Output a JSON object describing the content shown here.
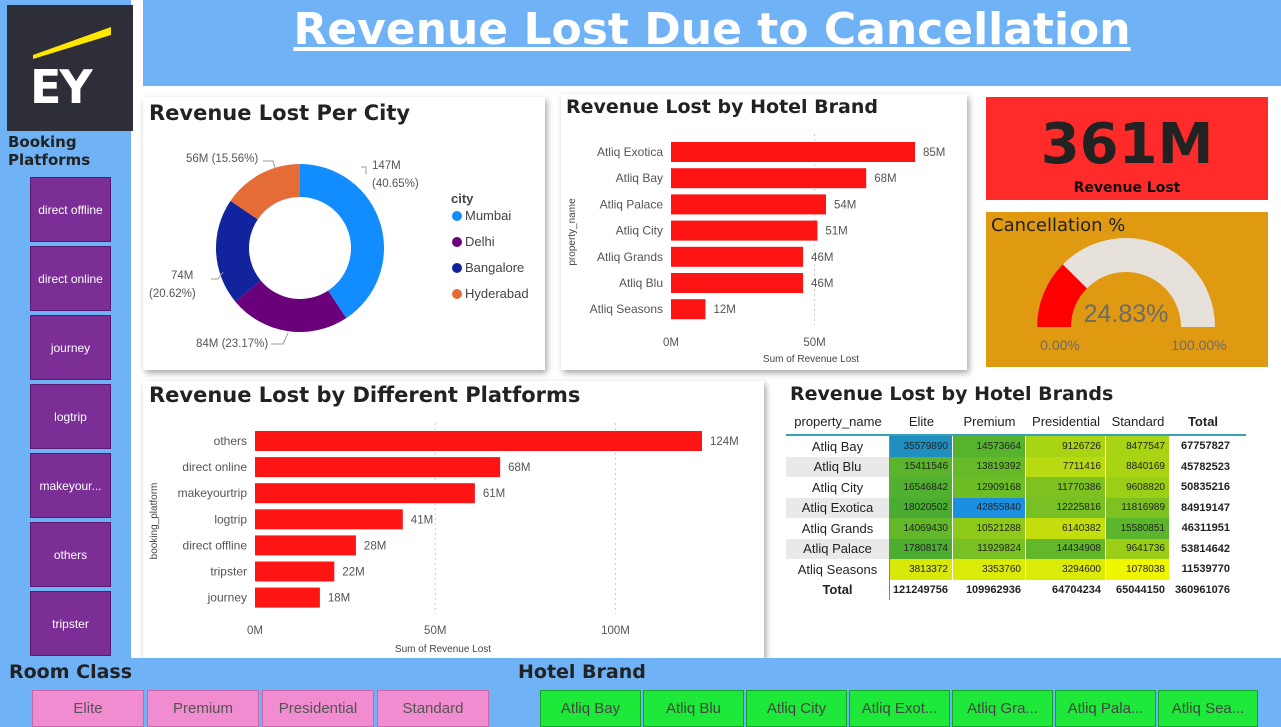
{
  "header": {
    "title": "Revenue Lost Due to Cancellation"
  },
  "logo": {
    "text": "EY"
  },
  "sidebar": {
    "title": "Booking Platforms",
    "buttons": [
      "direct offline",
      "direct online",
      "journey",
      "logtrip",
      "makeyour...",
      "others",
      "tripster"
    ]
  },
  "kpi": {
    "value": "361M",
    "label": "Revenue Lost"
  },
  "gauge": {
    "title": "Cancellation %",
    "value_label": "24.83%",
    "value": 24.83,
    "min_label": "0.00%",
    "max_label": "100.00%"
  },
  "city_panel": {
    "title": "Revenue Lost Per City"
  },
  "brand_panel": {
    "title": "Revenue Lost by Hotel Brand"
  },
  "platform_panel": {
    "title": "Revenue Lost by Different Platforms"
  },
  "matrix_panel": {
    "title": "Revenue Lost by Hotel Brands"
  },
  "matrix": {
    "headers": [
      "property_name",
      "Elite",
      "Premium",
      "Presidential",
      "Standard",
      "Total"
    ],
    "rows": [
      {
        "name": "Atliq Bay",
        "values": [
          "35579890",
          "14573664",
          "9126726",
          "8477547"
        ],
        "total": "67757827",
        "colors": [
          "#1f8fc0",
          "#57b32d",
          "#a8d413",
          "#a8d413"
        ]
      },
      {
        "name": "Atliq Blu",
        "values": [
          "15411546",
          "13819392",
          "7711416",
          "8840169"
        ],
        "total": "45782523",
        "colors": [
          "#5ab52c",
          "#66ba28",
          "#b8da10",
          "#a8d413"
        ]
      },
      {
        "name": "Atliq City",
        "values": [
          "16546842",
          "12909168",
          "11770386",
          "9608820"
        ],
        "total": "50835216",
        "colors": [
          "#52b030",
          "#6cbd26",
          "#7ec221",
          "#9bcf17"
        ]
      },
      {
        "name": "Atliq Exotica",
        "values": [
          "18020502",
          "42855840",
          "12225816",
          "11816989"
        ],
        "total": "84919147",
        "colors": [
          "#4aad32",
          "#1c8fe0",
          "#78c023",
          "#7ec221"
        ]
      },
      {
        "name": "Atliq Grands",
        "values": [
          "14069430",
          "10521288",
          "6140382",
          "15580851"
        ],
        "total": "46311951",
        "colors": [
          "#62b829",
          "#8fca1a",
          "#c4de0d",
          "#5cb62b"
        ]
      },
      {
        "name": "Atliq Palace",
        "values": [
          "17808174",
          "11929824",
          "14434908",
          "9641736"
        ],
        "total": "53814642",
        "colors": [
          "#4cae31",
          "#79c022",
          "#63b829",
          "#9bcf17"
        ]
      },
      {
        "name": "Atliq Seasons",
        "values": [
          "3813372",
          "3353760",
          "3294600",
          "1078038"
        ],
        "total": "11539770",
        "colors": [
          "#d8e808",
          "#dcea07",
          "#dcea07",
          "#f0f500"
        ]
      }
    ],
    "totals": {
      "name": "Total",
      "values": [
        "121249756",
        "109962936",
        "64704234",
        "65044150"
      ],
      "total": "360961076"
    }
  },
  "room_class": {
    "title": "Room Class",
    "buttons": [
      "Elite",
      "Premium",
      "Presidential",
      "Standard"
    ]
  },
  "hotel_brand": {
    "title": "Hotel Brand",
    "buttons": [
      "Atliq Bay",
      "Atliq Blu",
      "Atliq City",
      "Atliq Exot...",
      "Atliq Gra...",
      "Atliq Pala...",
      "Atliq Sea..."
    ]
  },
  "chart_data": [
    {
      "type": "pie",
      "title": "Revenue Lost Per City",
      "legend_title": "city",
      "legend_position": "right",
      "categories": [
        "Mumbai",
        "Delhi",
        "Bangalore",
        "Hyderabad"
      ],
      "values": [
        147,
        84,
        74,
        56
      ],
      "labels": [
        "147M",
        "84M (23.17%)",
        "74M",
        "56M (15.56%)"
      ],
      "percent_labels": [
        "(40.65%)",
        "",
        "(20.62%)",
        ""
      ],
      "colors": [
        "#118dff",
        "#6b007b",
        "#12239e",
        "#e66c37"
      ]
    },
    {
      "type": "bar",
      "orientation": "horizontal",
      "title": "Revenue Lost by Hotel Brand",
      "ylabel": "property_name",
      "xlabel": "Sum of Revenue Lost",
      "categories": [
        "Atliq Exotica",
        "Atliq Bay",
        "Atliq Palace",
        "Atliq City",
        "Atliq Grands",
        "Atliq Blu",
        "Atliq Seasons"
      ],
      "values": [
        85,
        68,
        54,
        51,
        46,
        46,
        12
      ],
      "value_labels": [
        "85M",
        "68M",
        "54M",
        "51M",
        "46M",
        "46M",
        "12M"
      ],
      "xlim": [
        0,
        85
      ],
      "xticks": [
        "0M",
        "50M"
      ],
      "xtick_values": [
        0,
        50
      ],
      "color": "#ff1414"
    },
    {
      "type": "bar",
      "orientation": "horizontal",
      "title": "Revenue Lost by Different Platforms",
      "ylabel": "booking_platform",
      "xlabel": "Sum of Revenue Lost",
      "categories": [
        "others",
        "direct online",
        "makeyourtrip",
        "logtrip",
        "direct offline",
        "tripster",
        "journey"
      ],
      "values": [
        124,
        68,
        61,
        41,
        28,
        22,
        18
      ],
      "value_labels": [
        "124M",
        "68M",
        "61M",
        "41M",
        "28M",
        "22M",
        "18M"
      ],
      "xlim": [
        0,
        124
      ],
      "xticks": [
        "0M",
        "50M",
        "100M"
      ],
      "xtick_values": [
        0,
        50,
        100
      ],
      "color": "#ff1414"
    }
  ]
}
